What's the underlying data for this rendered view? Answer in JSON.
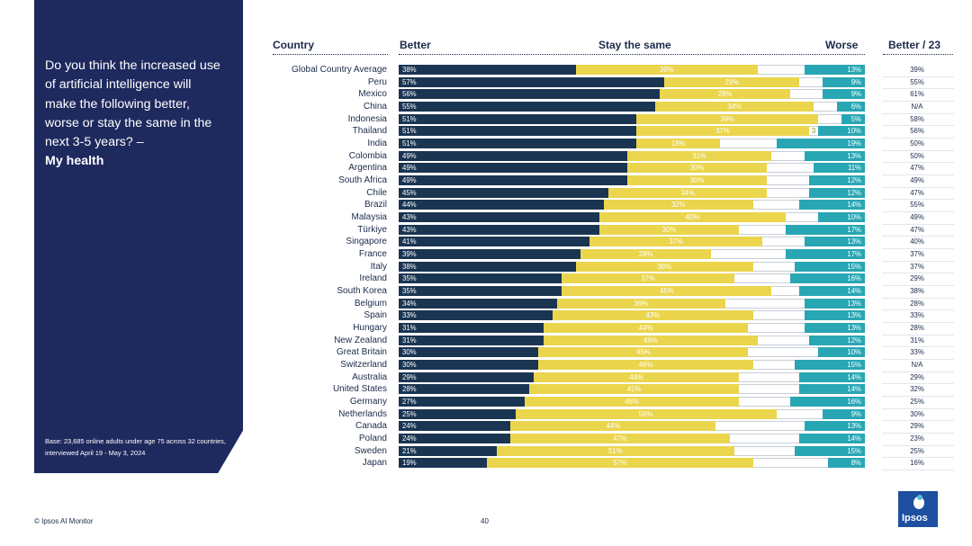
{
  "question": {
    "text": "Do you think the increased use of artificial intelligence will make the following better, worse or stay the same in the next 3-5 years? –",
    "topic": "My health"
  },
  "base_note": "Base: 23,685 online adults under age 75 across 32 countries, interviewed April 19 - May 3, 2024",
  "footer": {
    "source": "© Ipsos AI Monitor",
    "page_number": "40",
    "logo_text": "Ipsos"
  },
  "colors": {
    "panel": "#1e2a5e",
    "better": "#1a3552",
    "same": "#ead54d",
    "worse": "#28a6b3"
  },
  "chart_data": {
    "type": "bar",
    "stacked": true,
    "headers": {
      "country": "Country",
      "better": "Better",
      "same": "Stay the same",
      "worse": "Worse",
      "better23": "Better / 23"
    },
    "categories": [
      "Global Country Average",
      "Peru",
      "Mexico",
      "China",
      "Indonesia",
      "Thailand",
      "India",
      "Colombia",
      "Argentina",
      "South Africa",
      "Chile",
      "Brazil",
      "Malaysia",
      "Türkiye",
      "Singapore",
      "France",
      "Italy",
      "Ireland",
      "South Korea",
      "Belgium",
      "Spain",
      "Hungary",
      "New Zealand",
      "Great Britain",
      "Switzerland",
      "Australia",
      "United States",
      "Germany",
      "Netherlands",
      "Canada",
      "Poland",
      "Sweden",
      "Japan"
    ],
    "series": [
      {
        "name": "Better",
        "values": [
          38,
          57,
          56,
          55,
          51,
          51,
          51,
          49,
          49,
          49,
          45,
          44,
          43,
          43,
          41,
          39,
          38,
          35,
          35,
          34,
          33,
          31,
          31,
          30,
          30,
          29,
          28,
          27,
          25,
          24,
          24,
          21,
          19
        ]
      },
      {
        "name": "Stay the same",
        "values": [
          39,
          29,
          28,
          34,
          39,
          37,
          18,
          31,
          30,
          30,
          34,
          32,
          40,
          30,
          37,
          28,
          38,
          37,
          45,
          36,
          43,
          44,
          46,
          45,
          46,
          44,
          45,
          46,
          56,
          44,
          47,
          51,
          57
        ]
      },
      {
        "name": "Worse",
        "values": [
          13,
          9,
          9,
          6,
          5,
          10,
          19,
          13,
          11,
          12,
          12,
          14,
          10,
          17,
          13,
          17,
          15,
          16,
          14,
          13,
          13,
          13,
          12,
          10,
          15,
          14,
          14,
          16,
          9,
          13,
          14,
          15,
          8
        ]
      }
    ],
    "better_2023": [
      "39%",
      "55%",
      "61%",
      "N/A",
      "58%",
      "56%",
      "50%",
      "50%",
      "47%",
      "49%",
      "47%",
      "55%",
      "49%",
      "47%",
      "40%",
      "37%",
      "37%",
      "29%",
      "38%",
      "28%",
      "33%",
      "28%",
      "31%",
      "33%",
      "N/A",
      "29%",
      "32%",
      "25%",
      "30%",
      "29%",
      "23%",
      "25%",
      "16%"
    ],
    "stray_labels": [
      {
        "row": 5,
        "text": "3"
      }
    ],
    "xlim": [
      0,
      100
    ]
  }
}
